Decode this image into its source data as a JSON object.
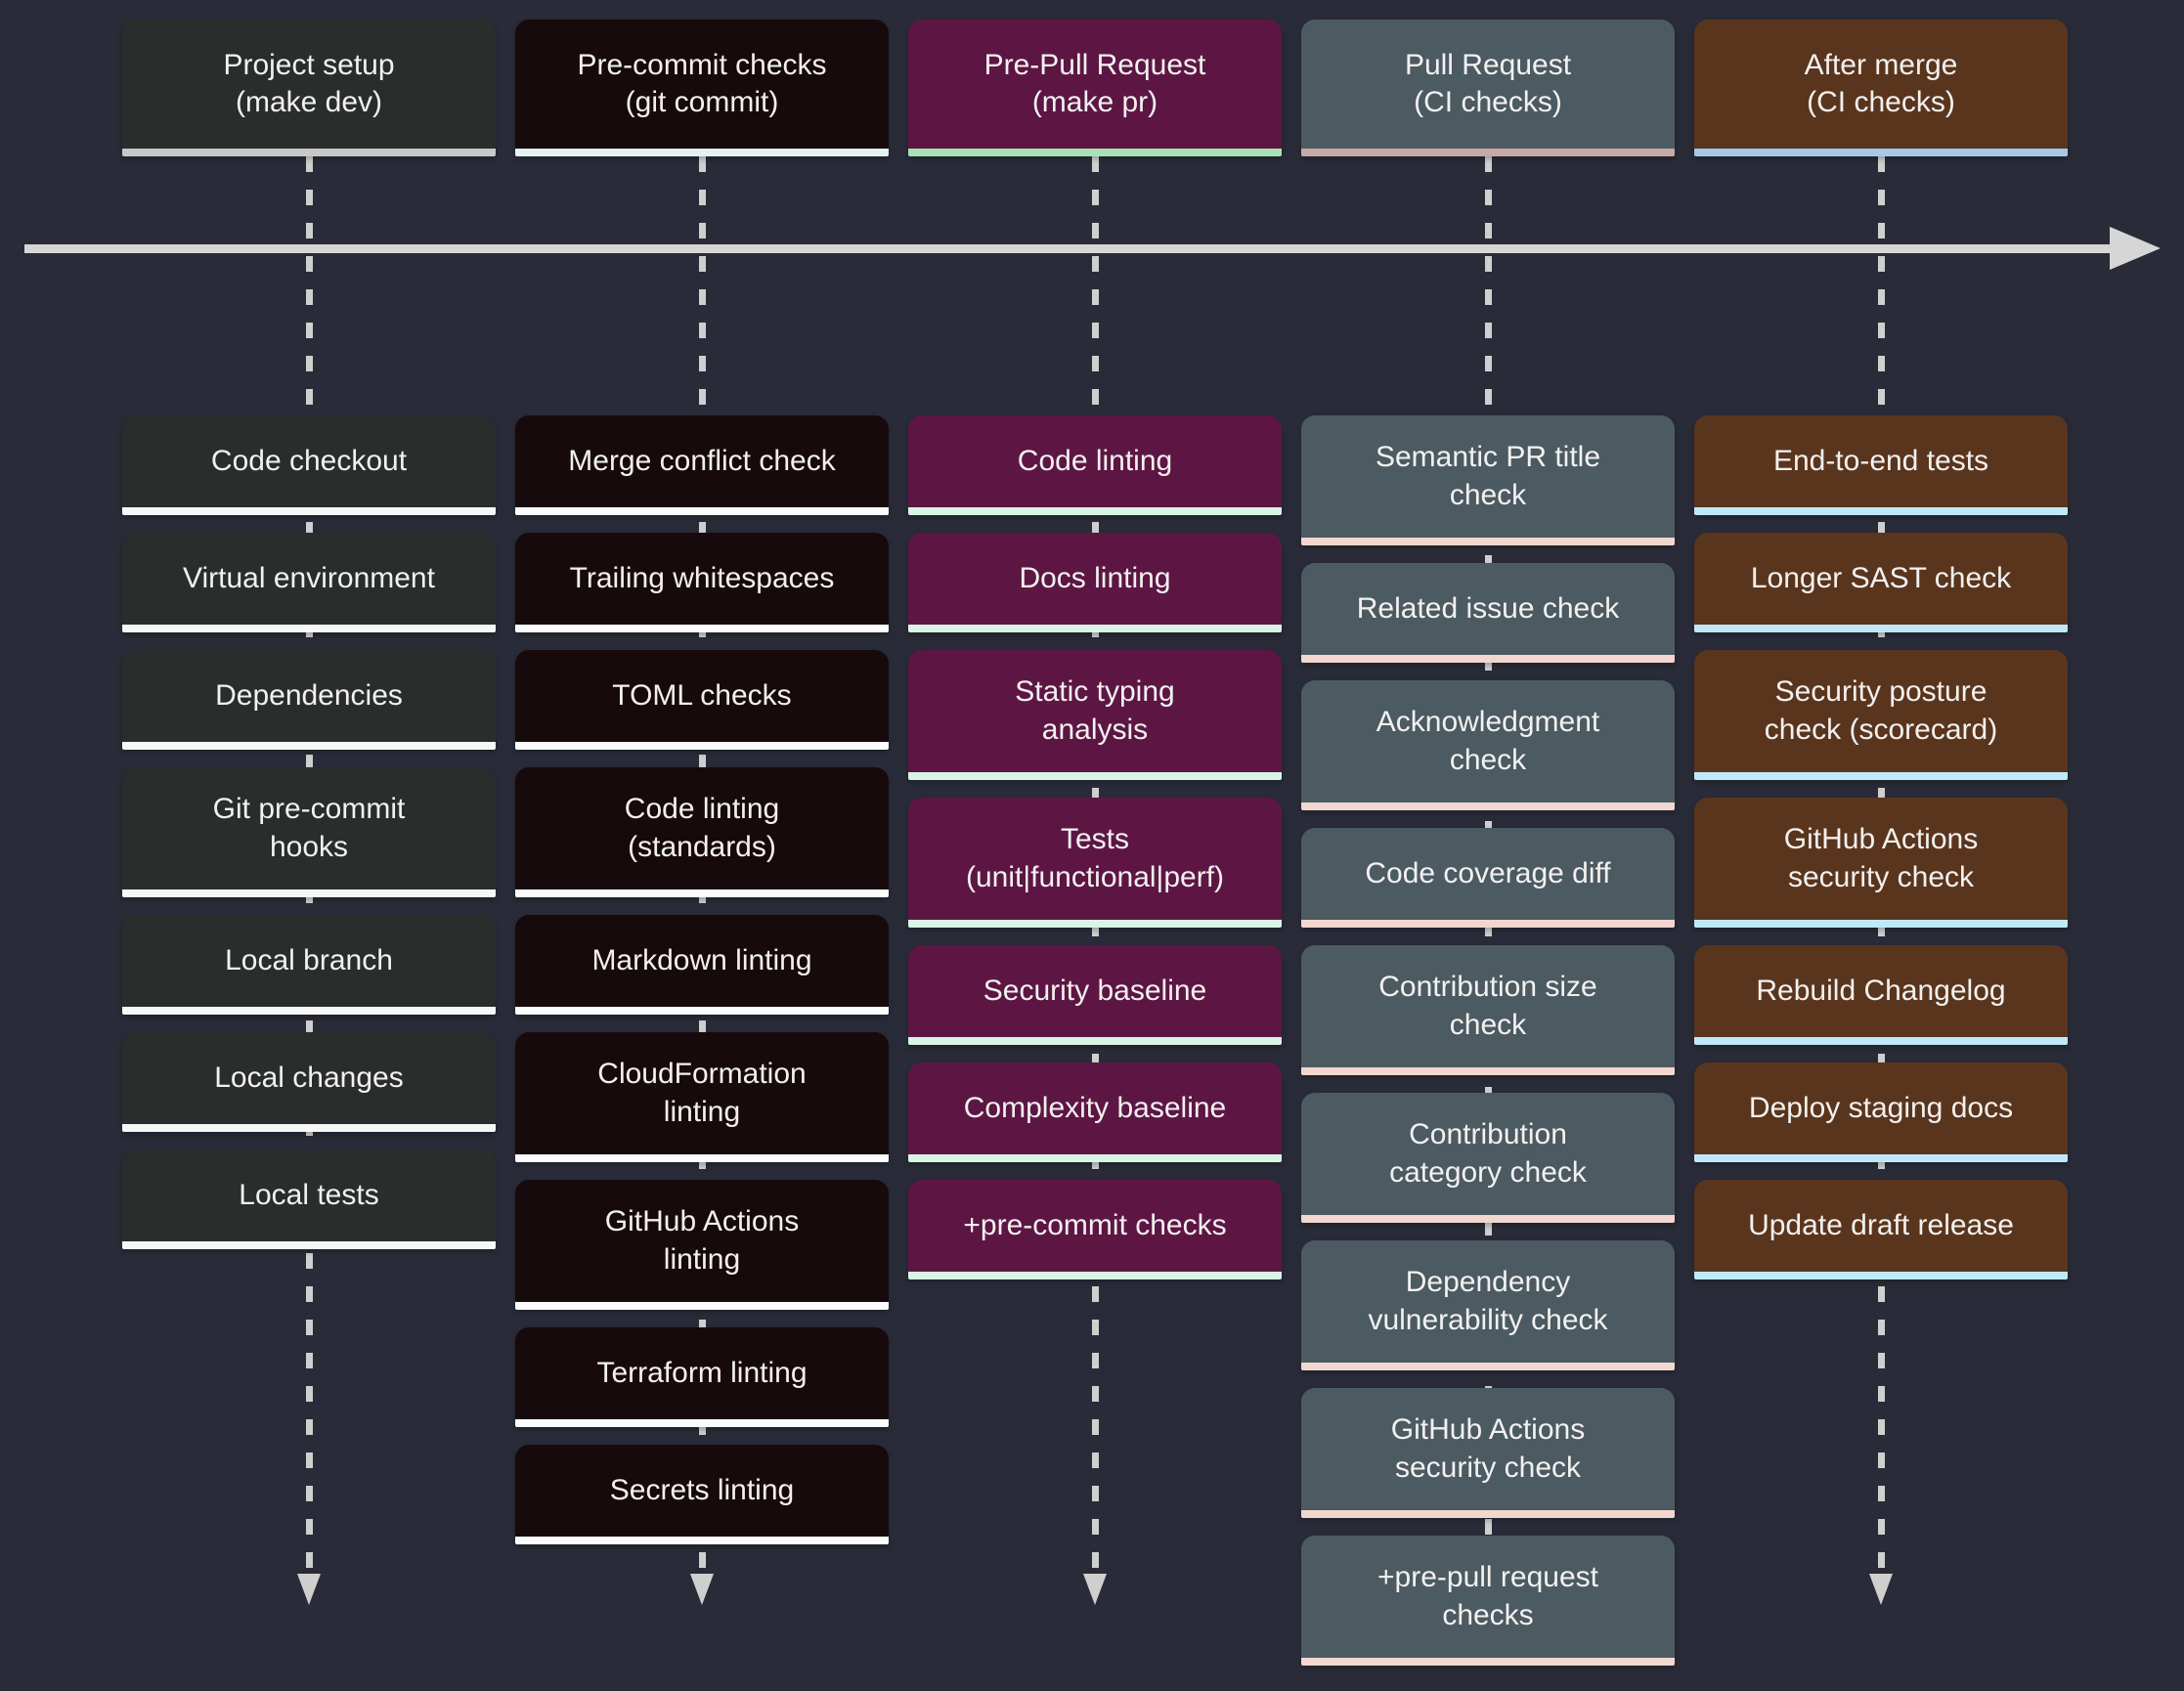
{
  "canvas": {
    "background": "#292c38",
    "timeline_arrow_color": "#d6d6d6",
    "dash_color": "#cfcfcf",
    "text_color": "#f2f1ef"
  },
  "columns": [
    {
      "id": "project-setup",
      "header": "Project setup\n(make dev)",
      "colors": {
        "box": "#292d2c",
        "header_border": "#c8c8c8",
        "item_border": "#f7f7f7"
      },
      "end_arrow": true,
      "items": [
        "Code checkout",
        "Virtual environment",
        "Dependencies",
        "Git pre-commit\nhooks",
        "Local branch",
        "Local changes",
        "Local tests"
      ]
    },
    {
      "id": "pre-commit-checks",
      "header": "Pre-commit checks\n(git commit)",
      "colors": {
        "box": "#170a0c",
        "header_border": "#e3f1f5",
        "item_border": "#fbfdfd"
      },
      "end_arrow": true,
      "items": [
        "Merge conflict check",
        "Trailing whitespaces",
        "TOML checks",
        "Code linting\n(standards)",
        "Markdown linting",
        "CloudFormation\nlinting",
        "GitHub Actions\nlinting",
        "Terraform linting",
        "Secrets linting"
      ]
    },
    {
      "id": "pre-pull-request",
      "header": "Pre-Pull Request\n(make pr)",
      "colors": {
        "box": "#5d1644",
        "header_border": "#a5e3b4",
        "item_border": "#d8f5e5"
      },
      "end_arrow": true,
      "items": [
        "Code linting",
        "Docs linting",
        "Static typing\nanalysis",
        "Tests\n(unit|functional|perf)",
        "Security baseline",
        "Complexity baseline",
        "+pre-commit checks"
      ]
    },
    {
      "id": "pull-request",
      "header": "Pull Request\n(CI checks)",
      "colors": {
        "box": "#4c5a62",
        "header_border": "#c9a9a6",
        "item_border": "#f1d7cf"
      },
      "end_arrow": false,
      "items": [
        "Semantic PR title\ncheck",
        "Related issue check",
        "Acknowledgment\ncheck",
        "Code coverage diff",
        "Contribution size\ncheck",
        "Contribution\ncategory check",
        "Dependency\nvulnerability check",
        "GitHub Actions\nsecurity check",
        "+pre-pull request\nchecks"
      ]
    },
    {
      "id": "after-merge",
      "header": "After merge\n(CI checks)",
      "colors": {
        "box": "#5a351e",
        "header_border": "#a5c9e6",
        "item_border": "#bfe9fa"
      },
      "end_arrow": true,
      "items": [
        "End-to-end tests",
        "Longer SAST check",
        "Security posture\ncheck (scorecard)",
        "GitHub Actions\nsecurity check",
        "Rebuild Changelog",
        "Deploy staging docs",
        "Update draft release"
      ]
    }
  ]
}
